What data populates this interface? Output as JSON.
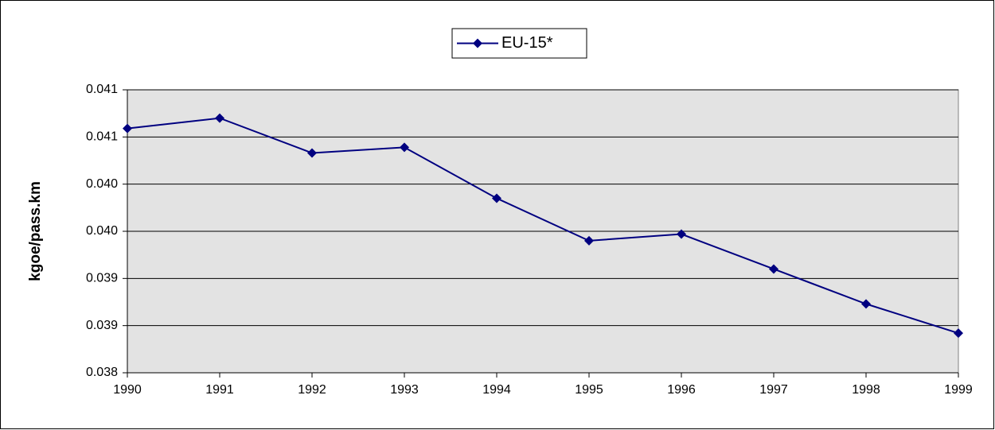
{
  "chart_data": {
    "type": "line",
    "y_label": "kgoe/pass.km",
    "categories": [
      "1990",
      "1991",
      "1992",
      "1993",
      "1994",
      "1995",
      "1996",
      "1997",
      "1998",
      "1999"
    ],
    "series": [
      {
        "name": "EU-15*",
        "color": "#000080",
        "values": [
          0.04059,
          0.0407,
          0.04033,
          0.04039,
          0.03985,
          0.0394,
          0.03947,
          0.0391,
          0.03873,
          0.03842
        ]
      }
    ],
    "ylim": [
      0.038,
      0.041
    ],
    "yticks": [
      0.038,
      {
        "value": 0.0385,
        "label": "0.039"
      },
      0.039,
      {
        "value": 0.0395,
        "label": "0.040"
      },
      {
        "value": 0.04,
        "label": "0.040"
      },
      {
        "value": 0.0405,
        "label": "0.041"
      },
      0.041
    ],
    "grid": true,
    "legend": "top"
  }
}
